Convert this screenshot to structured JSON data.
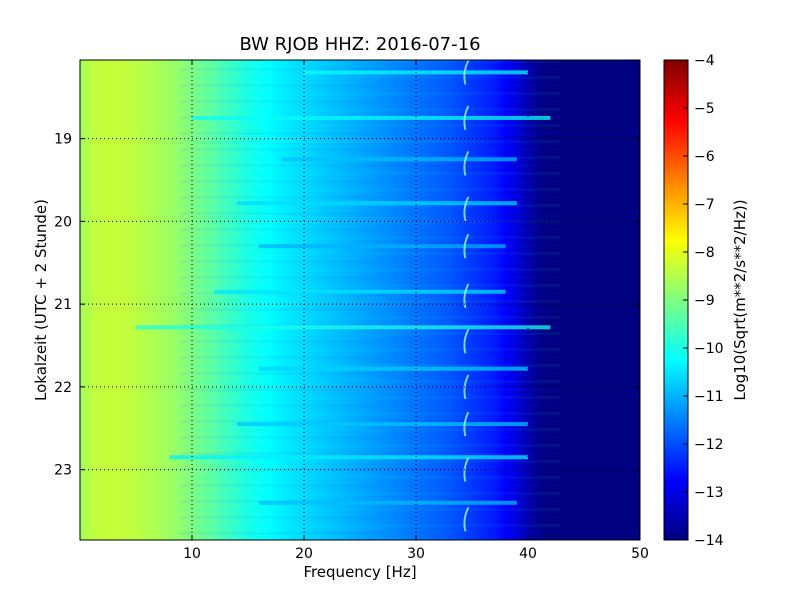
{
  "chart_data": {
    "type": "heatmap",
    "title": "BW RJOB HHZ: 2016-07-16",
    "xlabel": "Frequency [Hz]",
    "ylabel": "Lokalzeit (UTC + 2 Stunde)",
    "xlim": [
      0,
      50
    ],
    "ylim": [
      23.85,
      18.05
    ],
    "x_ticks": [
      10,
      20,
      30,
      40,
      50
    ],
    "x_tick_labels": [
      "10",
      "20",
      "30",
      "40",
      "50"
    ],
    "y_ticks": [
      19,
      20,
      21,
      22,
      23
    ],
    "y_tick_labels": [
      "19",
      "20",
      "21",
      "22",
      "23"
    ],
    "grid": true,
    "colorbar": {
      "label": "Log10(Sqrt(m**2/s**2/Hz))",
      "range": [
        -14,
        -4
      ],
      "ticks": [
        -4,
        -5,
        -6,
        -7,
        -8,
        -9,
        -10,
        -11,
        -12,
        -13,
        -14
      ],
      "tick_labels": [
        "−4",
        "−5",
        "−6",
        "−7",
        "−8",
        "−9",
        "−10",
        "−11",
        "−12",
        "−13",
        "−14"
      ],
      "colormap": "jet"
    },
    "frequency_profile": {
      "frequency_hz": [
        0,
        1,
        3,
        5,
        8,
        10,
        12,
        15,
        18,
        20,
        23,
        26,
        30,
        33,
        35,
        37,
        38,
        39,
        40,
        41,
        42,
        45,
        50
      ],
      "log_amplitude": [
        -8.7,
        -8.4,
        -8.3,
        -8.4,
        -8.7,
        -9.0,
        -9.4,
        -10.0,
        -10.4,
        -10.6,
        -10.9,
        -11.2,
        -11.6,
        -11.9,
        -12.2,
        -12.5,
        -12.8,
        -13.1,
        -13.5,
        -13.9,
        -14.0,
        -14.0,
        -14.0
      ]
    },
    "horizontal_bands": [
      {
        "time": 18.2,
        "x_start": 20,
        "x_end": 40,
        "log_amplitude": -10.2
      },
      {
        "time": 18.75,
        "x_start": 10,
        "x_end": 42,
        "log_amplitude": -10.2
      },
      {
        "time": 19.25,
        "x_start": 18,
        "x_end": 39,
        "log_amplitude": -10.9
      },
      {
        "time": 19.78,
        "x_start": 14,
        "x_end": 39,
        "log_amplitude": -10.6
      },
      {
        "time": 20.3,
        "x_start": 16,
        "x_end": 38,
        "log_amplitude": -11.0
      },
      {
        "time": 20.85,
        "x_start": 12,
        "x_end": 38,
        "log_amplitude": -10.5
      },
      {
        "time": 21.28,
        "x_start": 5,
        "x_end": 42,
        "log_amplitude": -10.0
      },
      {
        "time": 21.78,
        "x_start": 16,
        "x_end": 40,
        "log_amplitude": -10.7
      },
      {
        "time": 22.45,
        "x_start": 14,
        "x_end": 40,
        "log_amplitude": -10.8
      },
      {
        "time": 22.85,
        "x_start": 8,
        "x_end": 40,
        "log_amplitude": -10.4
      },
      {
        "time": 23.4,
        "x_start": 16,
        "x_end": 39,
        "log_amplitude": -10.9
      }
    ],
    "arc_features": {
      "frequency_hz": 34.5,
      "times": [
        18.2,
        18.75,
        19.3,
        19.85,
        20.3,
        20.9,
        21.45,
        22.0,
        22.45,
        23.0,
        23.6
      ]
    }
  }
}
